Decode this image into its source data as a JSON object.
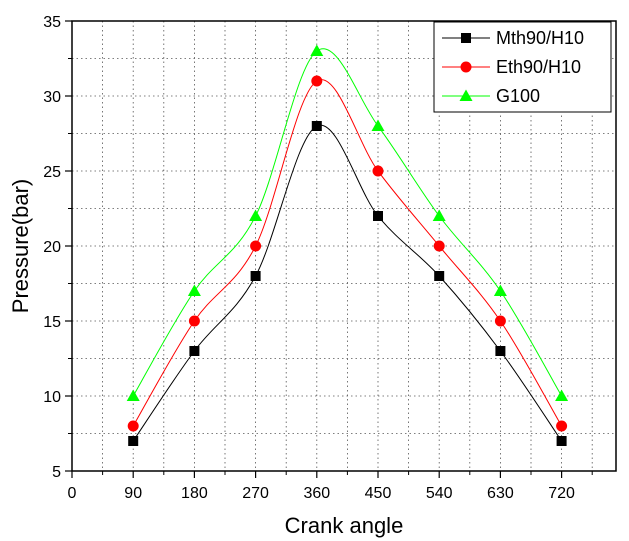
{
  "chart_data": {
    "type": "line",
    "xlabel": "Crank angle",
    "ylabel": "Pressure(bar)",
    "xlim": [
      0,
      800
    ],
    "ylim": [
      5,
      35
    ],
    "x_ticks": [
      0,
      90,
      180,
      270,
      360,
      450,
      540,
      630,
      720
    ],
    "y_ticks": [
      5,
      10,
      15,
      20,
      25,
      30,
      35
    ],
    "grid": "dotted",
    "legend_position": "top-right",
    "x": [
      90,
      180,
      270,
      360,
      450,
      540,
      630,
      720
    ],
    "series": [
      {
        "name": "Mth90/H10",
        "marker": "square",
        "color": "#000000",
        "values": [
          7,
          13,
          18,
          28,
          22,
          18,
          13,
          7
        ]
      },
      {
        "name": "Eth90/H10",
        "marker": "circle",
        "color": "#ff0000",
        "values": [
          8,
          15,
          20,
          31,
          25,
          20,
          15,
          8
        ]
      },
      {
        "name": "G100",
        "marker": "triangle",
        "color": "#00ff00",
        "values": [
          10,
          17,
          22,
          33,
          28,
          22,
          17,
          10
        ]
      }
    ]
  }
}
